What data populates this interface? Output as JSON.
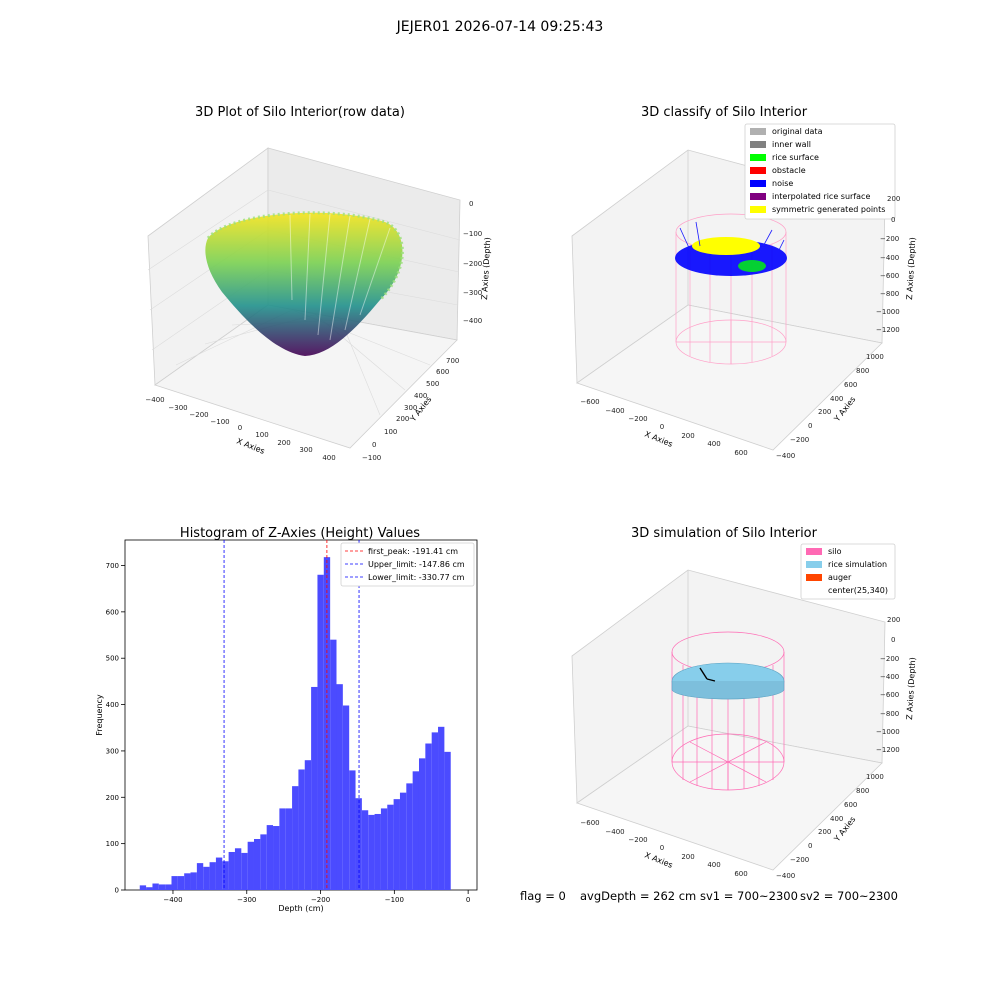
{
  "suptitle": "JEJER01 2026-07-14 09:25:43",
  "panels": {
    "raw": {
      "title": "3D Plot of Silo Interior(row data)",
      "xlabel": "X Axies",
      "ylabel": "Y Axies",
      "zlabel": "Z Axies (Depth)",
      "xticks": [
        "−400",
        "−300",
        "−200",
        "−100",
        "0",
        "100",
        "200",
        "300",
        "400"
      ],
      "yticks": [
        "−100",
        "0",
        "100",
        "200",
        "300",
        "400",
        "500",
        "600",
        "700"
      ],
      "zticks": [
        "0",
        "−100",
        "−200",
        "−300",
        "−400"
      ]
    },
    "classify": {
      "title": "3D classify of Silo Interior",
      "xlabel": "X Axies",
      "ylabel": "Y Axies",
      "zlabel": "Z Axies (Depth)",
      "xticks": [
        "−600",
        "−400",
        "−200",
        "0",
        "200",
        "400",
        "600"
      ],
      "yticks": [
        "−400",
        "−200",
        "0",
        "200",
        "400",
        "600",
        "800",
        "1000"
      ],
      "zticks": [
        "200",
        "0",
        "−200",
        "−400",
        "−600",
        "−800",
        "−1000",
        "−1200"
      ],
      "legend": [
        {
          "label": "original data",
          "color": "#b0b0b0"
        },
        {
          "label": "inner wall",
          "color": "#808080"
        },
        {
          "label": "rice surface",
          "color": "#00ff00"
        },
        {
          "label": "obstacle",
          "color": "#ff0000"
        },
        {
          "label": "noise",
          "color": "#0000ff"
        },
        {
          "label": "interpolated rice surface",
          "color": "#800080"
        },
        {
          "label": "symmetric generated points",
          "color": "#ffff00"
        }
      ]
    },
    "simulation": {
      "title": "3D simulation of Silo Interior",
      "xlabel": "X Axies",
      "ylabel": "Y Axies",
      "zlabel": "Z Axies (Depth)",
      "xticks": [
        "−600",
        "−400",
        "−200",
        "0",
        "200",
        "400",
        "600"
      ],
      "yticks": [
        "−400",
        "−200",
        "0",
        "200",
        "400",
        "600",
        "800",
        "1000"
      ],
      "zticks": [
        "200",
        "0",
        "−200",
        "−400",
        "−600",
        "−800",
        "−1000",
        "−1200"
      ],
      "legend": [
        {
          "label": "silo",
          "color": "#ff69b4"
        },
        {
          "label": "rice simulation",
          "color": "#87ceeb"
        },
        {
          "label": "auger",
          "color": "#ff4500"
        },
        {
          "label": "center(25,340)",
          "color": ""
        }
      ]
    }
  },
  "status_line": {
    "flag": "flag = 0",
    "avg_depth": "avgDepth = 262 cm",
    "sv1": "sv1 = 700~2300",
    "sv2": "sv2 = 700~2300"
  },
  "chart_data": {
    "type": "bar",
    "title": "Histogram of Z-Axies (Height) Values",
    "xlabel": "Depth (cm)",
    "ylabel": "Frequency",
    "xlim": [
      -465,
      12
    ],
    "ylim": [
      0,
      755
    ],
    "xticks": [
      -400,
      -300,
      -200,
      -100,
      0
    ],
    "xtick_labels": [
      "−400",
      "−300",
      "−200",
      "−100",
      "0"
    ],
    "yticks": [
      0,
      100,
      200,
      300,
      400,
      500,
      600,
      700
    ],
    "bar_color": "#4b4bff",
    "bin_edges_start": -445,
    "bin_width": 8.6,
    "counts": [
      10,
      6,
      14,
      12,
      12,
      30,
      30,
      36,
      38,
      58,
      50,
      60,
      70,
      62,
      82,
      90,
      80,
      104,
      110,
      120,
      140,
      138,
      176,
      176,
      224,
      260,
      280,
      438,
      680,
      718,
      540,
      444,
      398,
      258,
      198,
      172,
      162,
      164,
      176,
      184,
      196,
      210,
      230,
      256,
      284,
      316,
      340,
      352,
      298
    ],
    "lines": [
      {
        "label": "first_peak: -191.41 cm",
        "x": -191.41,
        "color": "#ff0000"
      },
      {
        "label": "Upper_limit: -147.86 cm",
        "x": -147.86,
        "color": "#0000ff"
      },
      {
        "label": "Lower_limit: -330.77 cm",
        "x": -330.77,
        "color": "#0000ff"
      }
    ]
  }
}
